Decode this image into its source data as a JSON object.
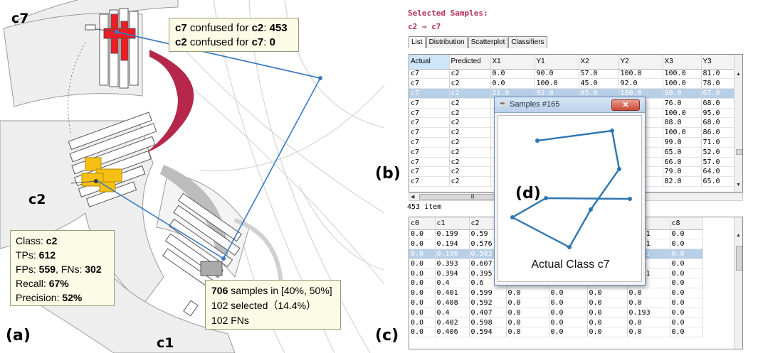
{
  "panel_labels": {
    "a": "(a)",
    "b": "(b)",
    "c": "(c)",
    "d": "(d)"
  },
  "classes": {
    "c7": "c7",
    "c2": "c2",
    "c1": "c1"
  },
  "colors": {
    "c7_highlight": "#ee1c24",
    "c2_highlight": "#f6c012",
    "confusion_band": "#b5284c",
    "link_line": "#3b7ac4",
    "selected_row": "#b8cfe8"
  },
  "confusion_tooltip": {
    "line1": {
      "cls_a": "c7",
      "text": " confused for ",
      "cls_b": "c2",
      "sep": ": ",
      "value": "453"
    },
    "line2": {
      "cls_a": "c2",
      "text": " confused for ",
      "cls_b": "c7",
      "sep": ": ",
      "value": "0"
    }
  },
  "class_tooltip": {
    "class_label": "Class: ",
    "class_value": "c2",
    "tps_label": "TPs: ",
    "tps_value": "612",
    "fps_label": "FPs: ",
    "fps_value": "559",
    "fns_label": ", FNs: ",
    "fns_value": "302",
    "recall_label": "Recall: ",
    "recall_value": "67%",
    "precision_label": "Precision: ",
    "precision_value": "52%"
  },
  "bin_tooltip": {
    "count": "706",
    "range_text": " samples in [40%, 50%]",
    "selected_text": "102 selected（14.4%）",
    "fns_text": "102 FNs"
  },
  "app": {
    "title": "Selected Samples:",
    "pair": "c2 ⇒ c7",
    "tabs": [
      "List",
      "Distribution",
      "Scatterplot",
      "Classifiers"
    ],
    "item_count": "453 item",
    "top_table": {
      "headers": [
        "Actual",
        "Predicted",
        "X1",
        "Y1",
        "X2",
        "Y2",
        "X3",
        "Y3"
      ],
      "rows": [
        [
          "c7",
          "c2",
          "0.0",
          "90.0",
          "57.0",
          "100.0",
          "100.0",
          "81.0"
        ],
        [
          "c7",
          "c2",
          "0.0",
          "100.0",
          "45.0",
          "92.0",
          "100.0",
          "78.0"
        ],
        [
          "c7",
          "c2",
          "21.0",
          "92.0",
          "85.0",
          "100.0",
          "90.0",
          "67.0"
        ],
        [
          "c7",
          "c2",
          "",
          "",
          "",
          "",
          "76.0",
          "68.0"
        ],
        [
          "c7",
          "c2",
          "",
          "",
          "",
          "",
          "100.0",
          "95.0"
        ],
        [
          "c7",
          "c2",
          "",
          "",
          "",
          "",
          "88.0",
          "68.0"
        ],
        [
          "c7",
          "c2",
          "",
          "",
          "",
          "",
          "100.0",
          "86.0"
        ],
        [
          "c7",
          "c2",
          "",
          "",
          "",
          "",
          "99.0",
          "71.0"
        ],
        [
          "c7",
          "c2",
          "",
          "",
          "",
          "",
          "65.0",
          "52.0"
        ],
        [
          "c7",
          "c2",
          "",
          "",
          "",
          "",
          "66.0",
          "57.0"
        ],
        [
          "c7",
          "c2",
          "",
          "",
          "",
          "",
          "79.0",
          "64.0"
        ],
        [
          "c7",
          "c2",
          "",
          "",
          "",
          "",
          "82.0",
          "65.0"
        ]
      ],
      "selected_row": 2
    },
    "bottom_table": {
      "headers": [
        "c0",
        "c1",
        "c2",
        "",
        "",
        "",
        "c7",
        "c8"
      ],
      "rows": [
        [
          "0.0",
          "0.199",
          "0.59",
          "",
          "",
          "",
          "0.211",
          "0.0"
        ],
        [
          "0.0",
          "0.194",
          "0.576",
          "",
          "",
          "",
          "0.231",
          "0.0"
        ],
        [
          "0.0",
          "0.196",
          "0.583",
          "",
          "",
          "",
          "0.221",
          "0.0"
        ],
        [
          "0.0",
          "0.393",
          "0.607",
          "",
          "",
          "",
          "0.0",
          "0.0"
        ],
        [
          "0.0",
          "0.394",
          "0.395",
          "",
          "",
          "",
          "0.211",
          "0.0"
        ],
        [
          "0.0",
          "0.4",
          "0.6",
          "0.0",
          "0.0",
          "0.0",
          "0.0",
          "0.0"
        ],
        [
          "0.0",
          "0.401",
          "0.599",
          "0.0",
          "0.0",
          "0.0",
          "0.0",
          "0.0"
        ],
        [
          "0.0",
          "0.408",
          "0.592",
          "0.0",
          "0.0",
          "0.0",
          "0.0",
          "0.0"
        ],
        [
          "0.0",
          "0.4",
          "0.407",
          "0.0",
          "0.0",
          "0.0",
          "0.193",
          "0.0"
        ],
        [
          "0.0",
          "0.402",
          "0.598",
          "0.0",
          "0.0",
          "0.0",
          "0.0",
          "0.0"
        ],
        [
          "0.0",
          "0.406",
          "0.594",
          "0.0",
          "0.0",
          "0.0",
          "0.0",
          "0.0"
        ]
      ],
      "selected_row": 2
    },
    "popup": {
      "title": "Samples #165",
      "close_label": "✕",
      "caption": "Actual Class c7"
    }
  }
}
